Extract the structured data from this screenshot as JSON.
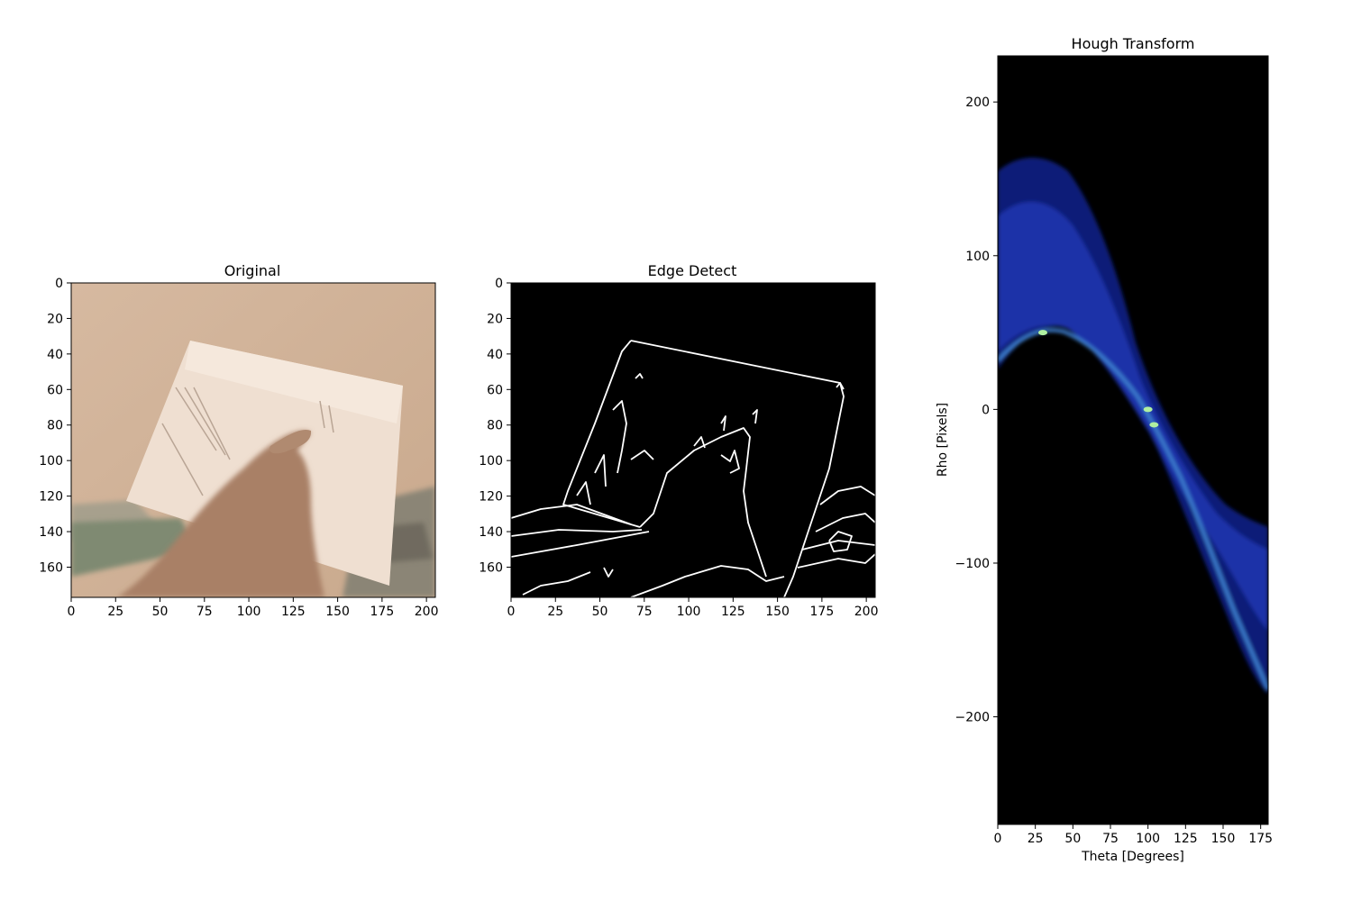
{
  "chart_data": [
    {
      "type": "image",
      "title": "Original",
      "xlim": [
        0,
        205
      ],
      "ylim": [
        177,
        0
      ],
      "xticks": [
        0,
        25,
        50,
        75,
        100,
        125,
        150,
        175,
        200
      ],
      "yticks": [
        0,
        20,
        40,
        60,
        80,
        100,
        120,
        140,
        160
      ],
      "xtick_labels": [
        "0",
        "25",
        "50",
        "75",
        "100",
        "125",
        "150",
        "175",
        "200"
      ],
      "ytick_labels": [
        "0",
        "20",
        "40",
        "60",
        "80",
        "100",
        "120",
        "140",
        "160"
      ],
      "colors": {
        "wall": "#d2b49a",
        "paper": "#f1e1d3",
        "hand": "#a97f64",
        "desk": "#9c8a75"
      }
    },
    {
      "type": "image",
      "title": "Edge Detect",
      "xlim": [
        0,
        205
      ],
      "ylim": [
        177,
        0
      ],
      "xticks": [
        0,
        25,
        50,
        75,
        100,
        125,
        150,
        175,
        200
      ],
      "yticks": [
        0,
        20,
        40,
        60,
        80,
        100,
        120,
        140,
        160
      ],
      "xtick_labels": [
        "0",
        "25",
        "50",
        "75",
        "100",
        "125",
        "150",
        "175",
        "200"
      ],
      "ytick_labels": [
        "0",
        "20",
        "40",
        "60",
        "80",
        "100",
        "120",
        "140",
        "160"
      ],
      "colors": {
        "background": "#000000",
        "edges": "#ffffff"
      }
    },
    {
      "type": "heatmap",
      "title": "Hough Transform",
      "xlabel": "Theta [Degrees]",
      "ylabel": "Rho [Pixels]",
      "xlim": [
        0,
        180
      ],
      "ylim": [
        -270,
        230
      ],
      "xticks": [
        0,
        25,
        50,
        75,
        100,
        125,
        150,
        175
      ],
      "yticks": [
        200,
        100,
        0,
        -100,
        -200
      ],
      "xtick_labels": [
        "0",
        "25",
        "50",
        "75",
        "100",
        "125",
        "150",
        "175"
      ],
      "ytick_labels": [
        "200",
        "100",
        "0",
        "−100",
        "−200"
      ],
      "colormap": [
        "#000000",
        "#0a1a70",
        "#1e3cc0",
        "#4aa0d0",
        "#b0f0a0"
      ],
      "peaks": [
        {
          "theta": 30,
          "rho": 50
        },
        {
          "theta": 100,
          "rho": 0
        },
        {
          "theta": 104,
          "rho": -10
        }
      ]
    }
  ]
}
